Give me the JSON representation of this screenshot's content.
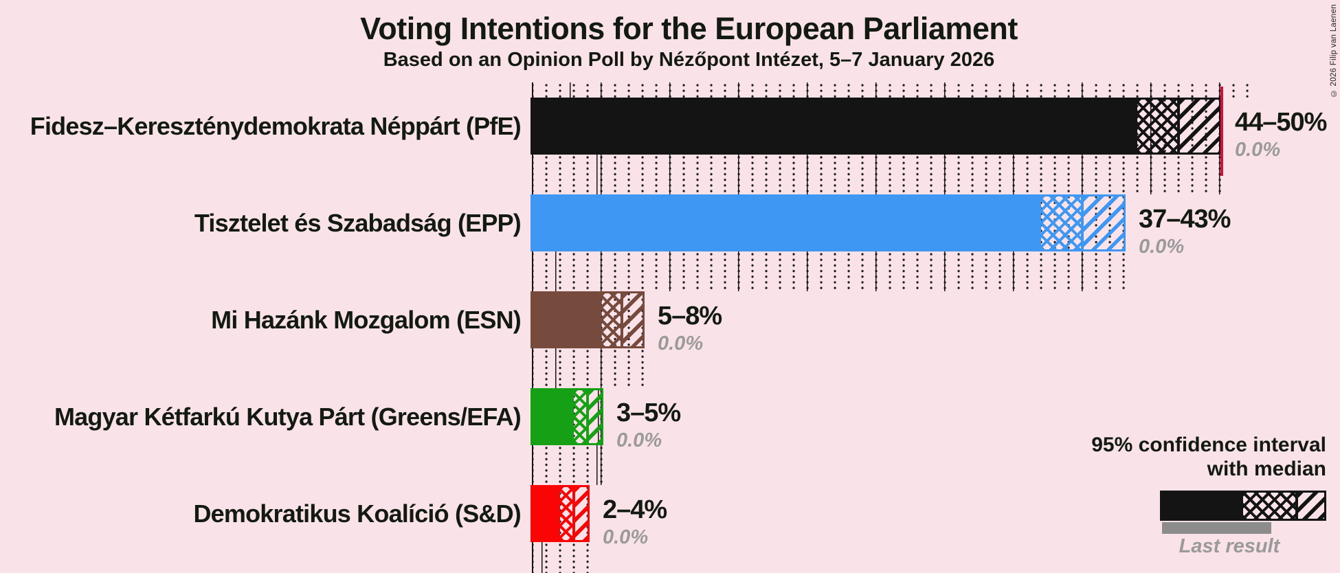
{
  "copyright": "© 2026 Filip van Laenen",
  "legend": {
    "line1": "95% confidence interval",
    "line2": "with median",
    "last_result_label": "Last result"
  },
  "colors": {
    "background": "#fae3e8",
    "text": "#121a12",
    "majority_line": "#d0123f",
    "last_result_bar": "#8c8c8c",
    "muted_text": "#9a9a9a"
  },
  "chart_data": {
    "type": "bar",
    "orientation": "horizontal",
    "title": "Voting Intentions for the European Parliament",
    "subtitle": "Based on an Opinion Poll by Nézőpont Intézet, 5–7 January 2026",
    "x_axis": {
      "unit": "%",
      "min": 0,
      "max": 52,
      "minor_tick_percent": 1,
      "major_tick_percent": 5
    },
    "majority_line_percent": 50,
    "legend_position": "bottom-right",
    "parties": [
      {
        "label": "Fidesz–Kereszténydemokrata Néppárt (PfE)",
        "color": "#141414",
        "ci_low": 44,
        "median": 47,
        "ci_high": 50,
        "ci_label": "44–50%",
        "last_result": 0.0,
        "last_result_label": "0.0%"
      },
      {
        "label": "Tisztelet és Szabadság (EPP)",
        "color": "#3e97f2",
        "ci_low": 37,
        "median": 40,
        "ci_high": 43,
        "ci_label": "37–43%",
        "last_result": 0.0,
        "last_result_label": "0.0%"
      },
      {
        "label": "Mi Hazánk Mozgalom (ESN)",
        "color": "#764b3e",
        "ci_low": 5,
        "median": 6.5,
        "ci_high": 8,
        "ci_label": "5–8%",
        "last_result": 0.0,
        "last_result_label": "0.0%"
      },
      {
        "label": "Magyar Kétfarkú Kutya Párt (Greens/EFA)",
        "color": "#15a015",
        "ci_low": 3,
        "median": 4,
        "ci_high": 5,
        "ci_label": "3–5%",
        "last_result": 0.0,
        "last_result_label": "0.0%"
      },
      {
        "label": "Demokratikus Koalíció (S&D)",
        "color": "#fa0505",
        "ci_low": 2,
        "median": 3,
        "ci_high": 4,
        "ci_label": "2–4%",
        "last_result": 0.0,
        "last_result_label": "0.0%"
      }
    ]
  }
}
